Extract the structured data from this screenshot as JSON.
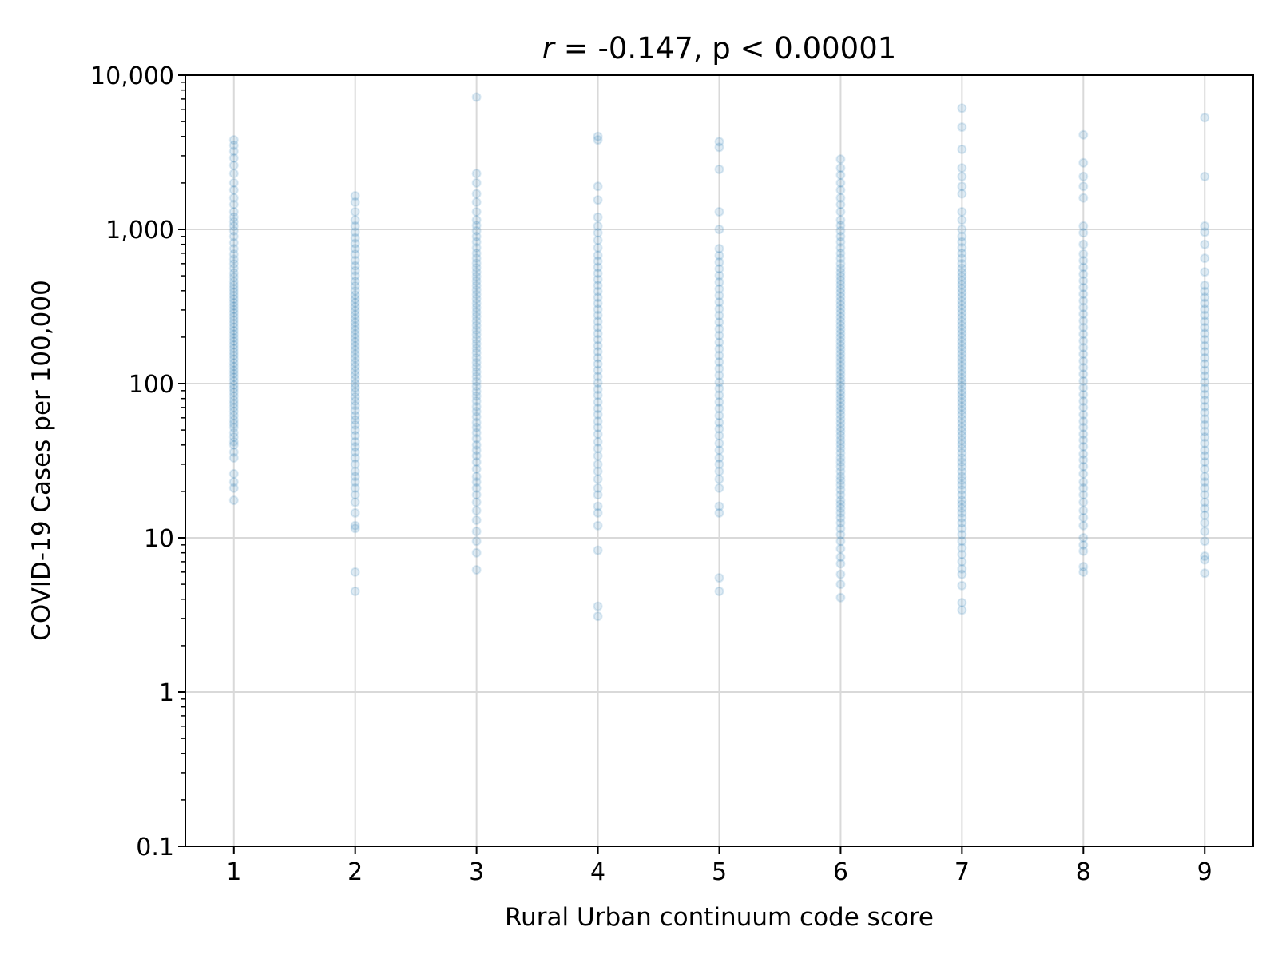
{
  "chart_data": {
    "type": "scatter",
    "title": "r = -0.147, p < 0.00001",
    "title_variable": "r",
    "title_rest": " = -0.147, p < 0.00001",
    "xlabel": "Rural Urban continuum code score",
    "ylabel": "COVID-19 Cases per 100,000",
    "xlim": [
      0.6,
      9.4
    ],
    "ylim": [
      0.1,
      10000
    ],
    "yscale": "log",
    "grid": true,
    "marker_color": "#1f77b4",
    "marker_alpha": 0.15,
    "x_ticks": [
      1,
      2,
      3,
      4,
      5,
      6,
      7,
      8,
      9
    ],
    "x_tick_labels": [
      "1",
      "2",
      "3",
      "4",
      "5",
      "6",
      "7",
      "8",
      "9"
    ],
    "y_ticks": [
      0.1,
      1,
      10,
      100,
      1000,
      10000
    ],
    "y_tick_labels": [
      "0.1",
      "1",
      "10",
      "100",
      "1,000",
      "10,000"
    ],
    "series": [
      {
        "x": 1,
        "values": [
          17.5,
          21,
          23,
          26,
          33,
          36,
          40,
          42,
          45,
          48,
          52,
          55,
          58,
          62,
          66,
          70,
          74,
          78,
          83,
          88,
          93,
          98,
          104,
          110,
          116,
          122,
          129,
          136,
          144,
          152,
          160,
          169,
          178,
          188,
          198,
          209,
          220,
          232,
          245,
          258,
          272,
          287,
          302,
          318,
          335,
          353,
          372,
          392,
          413,
          435,
          460,
          490,
          520,
          560,
          600,
          640,
          690,
          750,
          820,
          900,
          980,
          1050,
          1120,
          1200,
          1300,
          1450,
          1600,
          1800,
          2000,
          2300,
          2600,
          2900,
          3200,
          3500,
          3800
        ]
      },
      {
        "x": 2,
        "values": [
          4.5,
          6,
          11.5,
          12,
          14.5,
          17,
          19,
          21,
          23,
          25,
          27,
          30,
          33,
          36,
          39,
          42,
          46,
          50,
          54,
          58,
          62,
          67,
          72,
          77,
          82,
          88,
          94,
          100,
          107,
          114,
          121,
          129,
          137,
          146,
          155,
          165,
          175,
          186,
          197,
          209,
          222,
          235,
          249,
          264,
          280,
          297,
          315,
          334,
          354,
          375,
          400,
          430,
          460,
          500,
          540,
          580,
          630,
          690,
          750,
          810,
          880,
          960,
          1050,
          1150,
          1300,
          1500,
          1650
        ]
      },
      {
        "x": 3,
        "values": [
          6.2,
          8,
          9.5,
          11,
          13,
          15,
          17,
          19,
          21,
          23,
          25,
          28,
          31,
          34,
          37,
          40,
          44,
          48,
          52,
          56,
          61,
          66,
          71,
          77,
          83,
          89,
          96,
          103,
          111,
          119,
          128,
          137,
          147,
          158,
          169,
          181,
          194,
          208,
          222,
          238,
          254,
          272,
          290,
          310,
          331,
          354,
          378,
          404,
          432,
          462,
          494,
          528,
          565,
          604,
          650,
          700,
          760,
          830,
          900,
          980,
          1060,
          1150,
          1300,
          1500,
          1700,
          2000,
          2300,
          7200
        ]
      },
      {
        "x": 4,
        "values": [
          3.1,
          3.6,
          8.3,
          12,
          14.5,
          16,
          19,
          21,
          24,
          27,
          30,
          34,
          38,
          42,
          47,
          52,
          57,
          63,
          69,
          76,
          84,
          92,
          101,
          111,
          122,
          134,
          147,
          161,
          176,
          193,
          211,
          231,
          253,
          277,
          303,
          331,
          362,
          396,
          433,
          474,
          519,
          568,
          622,
          680,
          760,
          850,
          950,
          1050,
          1200,
          1550,
          1900,
          3800,
          4000
        ]
      },
      {
        "x": 5,
        "values": [
          4.5,
          5.5,
          14.5,
          16,
          21,
          24,
          27,
          30,
          33,
          37,
          41,
          46,
          51,
          56,
          62,
          69,
          76,
          84,
          93,
          102,
          113,
          125,
          138,
          152,
          168,
          185,
          205,
          226,
          250,
          276,
          305,
          337,
          372,
          411,
          455,
          502,
          555,
          613,
          677,
          750,
          1000,
          1300,
          2450,
          3400,
          3700
        ]
      },
      {
        "x": 6,
        "values": [
          4.1,
          5,
          5.8,
          6.8,
          7.5,
          8.5,
          9.5,
          10.5,
          11.5,
          12.5,
          13.5,
          14.5,
          15.5,
          16.5,
          17.5,
          19,
          20.5,
          22,
          23.5,
          25,
          27,
          29,
          31,
          33,
          35.5,
          38,
          40.5,
          43,
          46,
          49,
          52,
          55.5,
          59,
          63,
          67,
          71,
          75.5,
          80,
          85,
          90,
          96,
          102,
          108,
          115,
          122,
          130,
          138,
          147,
          156,
          166,
          176,
          187,
          199,
          211,
          224,
          238,
          253,
          269,
          286,
          304,
          323,
          343,
          365,
          388,
          412,
          438,
          465,
          494,
          525,
          560,
          600,
          650,
          700,
          760,
          830,
          900,
          980,
          1060,
          1150,
          1300,
          1450,
          1600,
          1800,
          2000,
          2250,
          2500,
          2850
        ]
      },
      {
        "x": 7,
        "values": [
          3.4,
          3.8,
          4.9,
          5.8,
          6.3,
          7,
          7.8,
          8.6,
          9.5,
          10.5,
          11.5,
          12.5,
          13.5,
          14.5,
          15.5,
          16.5,
          17.5,
          19,
          20.5,
          22,
          23.5,
          25,
          27,
          29,
          31,
          33,
          35.5,
          38,
          40.5,
          43,
          46,
          49,
          52,
          55.5,
          59,
          63,
          67,
          71,
          75.5,
          80,
          85,
          90,
          96,
          102,
          108,
          115,
          122,
          130,
          138,
          147,
          156,
          166,
          176,
          187,
          199,
          211,
          224,
          238,
          253,
          269,
          286,
          304,
          323,
          343,
          365,
          388,
          412,
          438,
          465,
          494,
          525,
          560,
          600,
          650,
          700,
          760,
          830,
          900,
          1000,
          1150,
          1300,
          1700,
          1900,
          2200,
          2500,
          3300,
          4600,
          6100
        ]
      },
      {
        "x": 8,
        "values": [
          6,
          6.5,
          8.2,
          9,
          10,
          12,
          13.5,
          15,
          17,
          19,
          21,
          23,
          26,
          29,
          32,
          35,
          39,
          43,
          47,
          52,
          57,
          63,
          70,
          77,
          85,
          94,
          104,
          115,
          127,
          140,
          155,
          171,
          189,
          209,
          231,
          255,
          282,
          311,
          344,
          380,
          420,
          464,
          513,
          567,
          627,
          693,
          800,
          950,
          1050,
          1600,
          1900,
          2200,
          2700,
          4100
        ]
      },
      {
        "x": 9,
        "values": [
          5.9,
          7.2,
          7.6,
          9.5,
          11,
          12.5,
          14,
          15.5,
          17,
          19,
          21,
          23,
          25,
          28,
          31,
          34,
          37,
          41,
          45,
          49,
          54,
          59,
          65,
          71,
          78,
          85,
          93,
          102,
          112,
          122,
          134,
          147,
          161,
          176,
          193,
          211,
          231,
          253,
          277,
          303,
          331,
          362,
          396,
          433,
          530,
          650,
          800,
          960,
          1050,
          2200,
          5300
        ]
      }
    ]
  }
}
